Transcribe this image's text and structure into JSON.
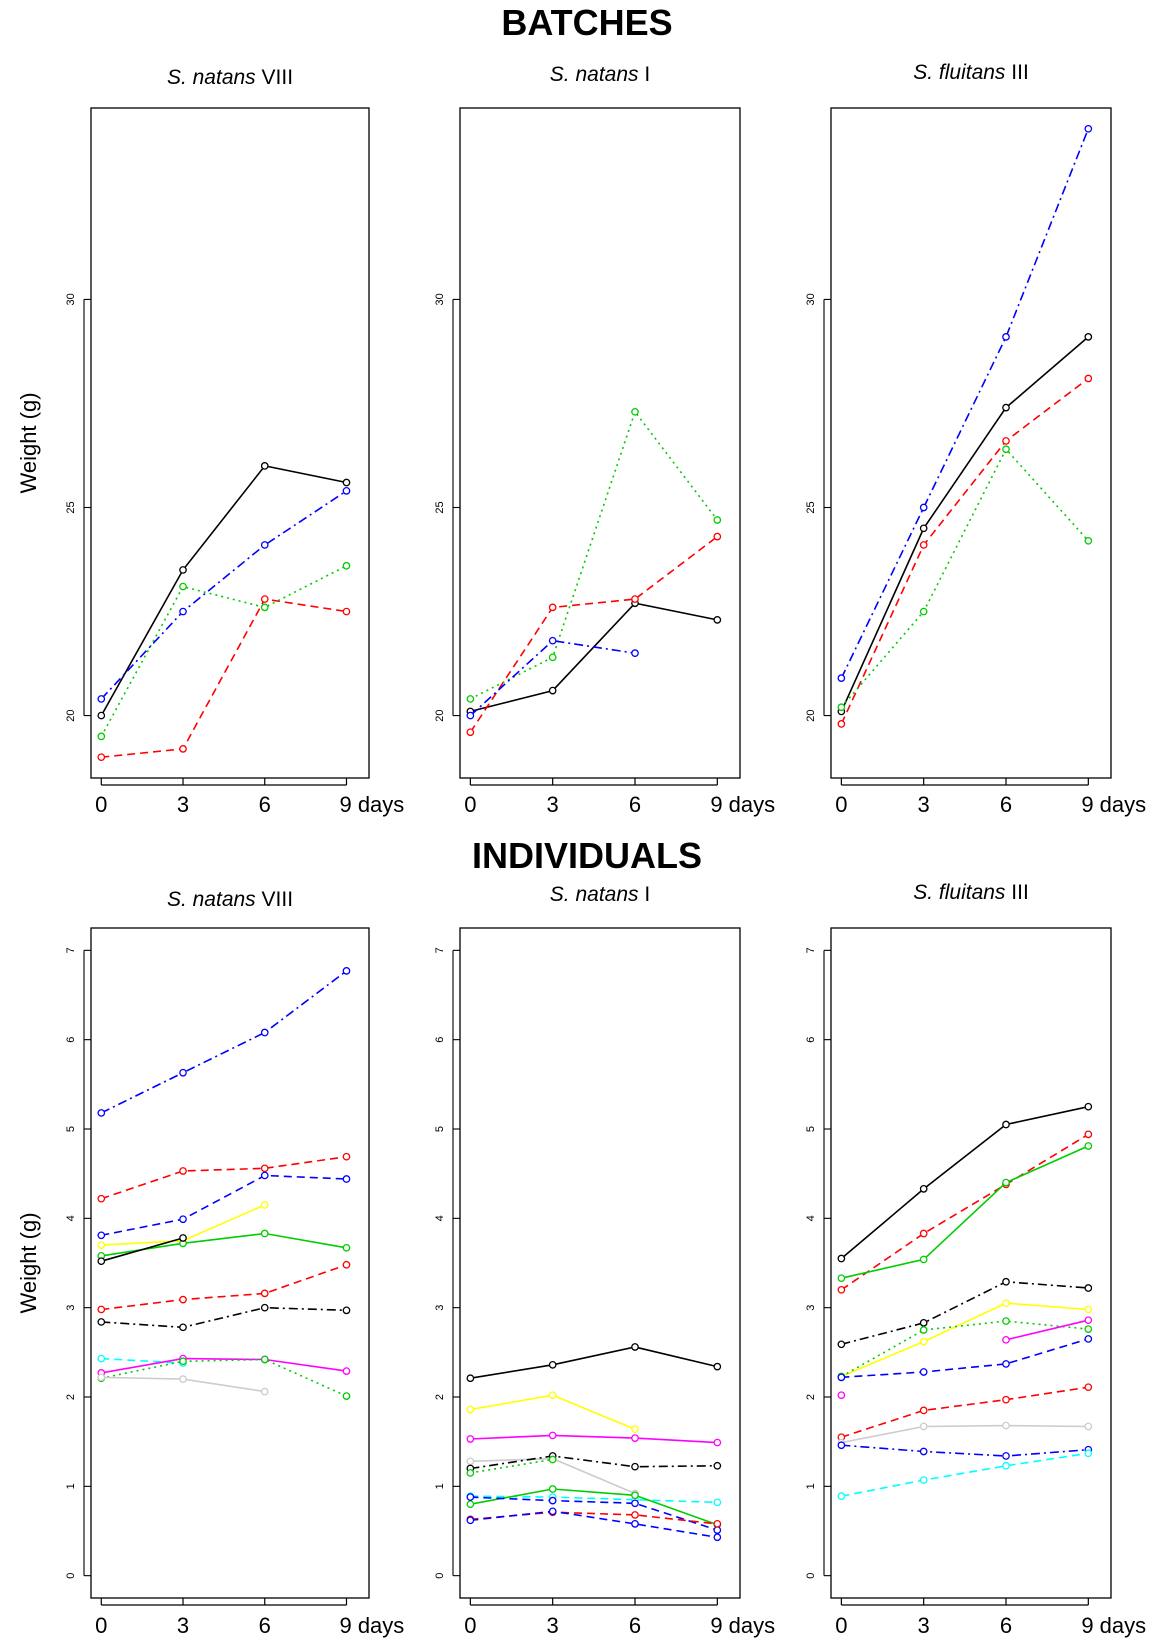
{
  "sections": [
    {
      "title": "BATCHES"
    },
    {
      "title": "INDIVIDUALS"
    }
  ],
  "chart_data": [
    {
      "type": "line",
      "group": "BATCHES",
      "title_italic": "S. natans",
      "title_suffix": " VIII",
      "ylabel": "Weight (g)",
      "x": [
        0,
        3,
        6,
        9
      ],
      "x_tick_labels": [
        "0",
        "3",
        "6",
        "9 days"
      ],
      "y_ticks": [
        20,
        25,
        30
      ],
      "ylim": [
        18.5,
        34.6
      ],
      "series": [
        {
          "color": "#000000",
          "style": "solid",
          "values": [
            20.0,
            23.5,
            26.0,
            25.6
          ]
        },
        {
          "color": "#ff0000",
          "style": "dashed",
          "values": [
            19.0,
            19.2,
            22.8,
            22.5
          ]
        },
        {
          "color": "#00cc00",
          "style": "dotted",
          "values": [
            19.5,
            23.1,
            22.6,
            23.6
          ]
        },
        {
          "color": "#0000ff",
          "style": "dashdot",
          "values": [
            20.4,
            22.5,
            24.1,
            25.4
          ]
        }
      ]
    },
    {
      "type": "line",
      "group": "BATCHES",
      "title_italic": "S. natans",
      "title_suffix": " I",
      "ylabel": "",
      "x": [
        0,
        3,
        6,
        9
      ],
      "x_tick_labels": [
        "0",
        "3",
        "6",
        "9 days"
      ],
      "y_ticks": [
        20,
        25,
        30
      ],
      "ylim": [
        18.5,
        34.6
      ],
      "series": [
        {
          "color": "#000000",
          "style": "solid",
          "values": [
            20.1,
            20.6,
            22.7,
            22.3
          ]
        },
        {
          "color": "#ff0000",
          "style": "dashed",
          "values": [
            19.6,
            22.6,
            22.8,
            24.3
          ]
        },
        {
          "color": "#00cc00",
          "style": "dotted",
          "values": [
            20.4,
            21.4,
            27.3,
            24.7
          ]
        },
        {
          "color": "#0000ff",
          "style": "dashdot",
          "values": [
            20.0,
            21.8,
            21.5,
            null
          ]
        }
      ]
    },
    {
      "type": "line",
      "group": "BATCHES",
      "title_italic": "S. fluitans",
      "title_suffix": " III",
      "ylabel": "",
      "x": [
        0,
        3,
        6,
        9
      ],
      "x_tick_labels": [
        "0",
        "3",
        "6",
        "9 days"
      ],
      "y_ticks": [
        20,
        25,
        30
      ],
      "ylim": [
        18.5,
        34.6
      ],
      "series": [
        {
          "color": "#000000",
          "style": "solid",
          "values": [
            20.1,
            24.5,
            27.4,
            29.1
          ]
        },
        {
          "color": "#ff0000",
          "style": "dashed",
          "values": [
            19.8,
            24.1,
            26.6,
            28.1
          ]
        },
        {
          "color": "#00cc00",
          "style": "dotted",
          "values": [
            20.2,
            22.5,
            26.4,
            24.2
          ]
        },
        {
          "color": "#0000ff",
          "style": "dashdot",
          "values": [
            20.9,
            25.0,
            29.1,
            34.1
          ]
        }
      ]
    },
    {
      "type": "line",
      "group": "INDIVIDUALS",
      "title_italic": "S. natans",
      "title_suffix": " VIII",
      "ylabel": "Weight (g)",
      "x": [
        0,
        3,
        6,
        9
      ],
      "x_tick_labels": [
        "0",
        "3",
        "6",
        "9 days"
      ],
      "y_ticks": [
        0,
        1,
        2,
        3,
        4,
        5,
        6,
        7
      ],
      "ylim": [
        -0.25,
        7.25
      ],
      "series": [
        {
          "color": "#0000ff",
          "style": "dashdot",
          "values": [
            5.18,
            5.63,
            6.08,
            6.77
          ]
        },
        {
          "color": "#ff0000",
          "style": "dashed",
          "values": [
            4.22,
            4.53,
            4.56,
            4.69
          ]
        },
        {
          "color": "#0000ff",
          "style": "dashed",
          "values": [
            3.81,
            3.99,
            4.48,
            4.44
          ]
        },
        {
          "color": "#ffff00",
          "style": "solid",
          "values": [
            3.7,
            3.75,
            4.15,
            null
          ]
        },
        {
          "color": "#00cc00",
          "style": "solid",
          "values": [
            3.58,
            3.72,
            3.83,
            3.67
          ]
        },
        {
          "color": "#000000",
          "style": "solid",
          "values": [
            3.52,
            3.78,
            null,
            null
          ]
        },
        {
          "color": "#ff0000",
          "style": "dashed",
          "values": [
            2.98,
            3.09,
            3.16,
            3.48
          ]
        },
        {
          "color": "#000000",
          "style": "dashdot",
          "values": [
            2.84,
            2.78,
            3.0,
            2.97
          ]
        },
        {
          "color": "#00ffff",
          "style": "dashed",
          "values": [
            2.43,
            2.38,
            null,
            null
          ]
        },
        {
          "color": "#ff00ff",
          "style": "solid",
          "values": [
            2.27,
            2.43,
            2.42,
            2.29
          ]
        },
        {
          "color": "#00cc00",
          "style": "dotted",
          "values": [
            2.21,
            2.4,
            2.42,
            2.01
          ]
        },
        {
          "color": "#cccccc",
          "style": "solid",
          "values": [
            2.22,
            2.2,
            2.06,
            null
          ]
        }
      ]
    },
    {
      "type": "line",
      "group": "INDIVIDUALS",
      "title_italic": "S. natans",
      "title_suffix": " I",
      "ylabel": "",
      "x": [
        0,
        3,
        6,
        9
      ],
      "x_tick_labels": [
        "0",
        "3",
        "6",
        "9 days"
      ],
      "y_ticks": [
        0,
        1,
        2,
        3,
        4,
        5,
        6,
        7
      ],
      "ylim": [
        -0.25,
        7.25
      ],
      "series": [
        {
          "color": "#000000",
          "style": "solid",
          "values": [
            2.21,
            2.36,
            2.56,
            2.34
          ]
        },
        {
          "color": "#ffff00",
          "style": "solid",
          "values": [
            1.86,
            2.02,
            1.64,
            null
          ]
        },
        {
          "color": "#ff00ff",
          "style": "solid",
          "values": [
            1.53,
            1.57,
            1.54,
            1.49
          ]
        },
        {
          "color": "#cccccc",
          "style": "solid",
          "values": [
            1.28,
            1.31,
            0.92,
            null
          ]
        },
        {
          "color": "#000000",
          "style": "dashdot",
          "values": [
            1.2,
            1.34,
            1.22,
            1.23
          ]
        },
        {
          "color": "#00cc00",
          "style": "dotted",
          "values": [
            1.15,
            1.3,
            null,
            null
          ]
        },
        {
          "color": "#00ffff",
          "style": "dashed",
          "values": [
            0.89,
            0.88,
            0.85,
            0.82
          ]
        },
        {
          "color": "#00cc00",
          "style": "solid",
          "values": [
            0.8,
            0.97,
            0.9,
            0.57
          ]
        },
        {
          "color": "#0000ff",
          "style": "dashed",
          "values": [
            0.88,
            0.84,
            0.81,
            0.51
          ]
        },
        {
          "color": "#ff0000",
          "style": "dashed",
          "values": [
            0.63,
            0.71,
            0.68,
            0.58
          ]
        },
        {
          "color": "#0000ff",
          "style": "dashed",
          "values": [
            0.62,
            0.72,
            0.58,
            0.43
          ]
        }
      ]
    },
    {
      "type": "line",
      "group": "INDIVIDUALS",
      "title_italic": "S. fluitans",
      "title_suffix": " III",
      "ylabel": "",
      "x": [
        0,
        3,
        6,
        9
      ],
      "x_tick_labels": [
        "0",
        "3",
        "6",
        "9 days"
      ],
      "y_ticks": [
        0,
        1,
        2,
        3,
        4,
        5,
        6,
        7
      ],
      "ylim": [
        -0.25,
        7.25
      ],
      "series": [
        {
          "color": "#000000",
          "style": "solid",
          "values": [
            3.55,
            4.33,
            5.05,
            5.25
          ]
        },
        {
          "color": "#ff0000",
          "style": "dashed",
          "values": [
            3.2,
            3.83,
            4.38,
            4.94
          ]
        },
        {
          "color": "#00cc00",
          "style": "solid",
          "values": [
            3.33,
            3.54,
            4.4,
            4.81
          ]
        },
        {
          "color": "#000000",
          "style": "dashdot",
          "values": [
            2.59,
            2.83,
            3.29,
            3.22
          ]
        },
        {
          "color": "#ffff00",
          "style": "solid",
          "values": [
            2.23,
            2.62,
            3.05,
            2.98
          ]
        },
        {
          "color": "#00cc00",
          "style": "dotted",
          "values": [
            2.23,
            2.75,
            2.85,
            2.76
          ]
        },
        {
          "color": "#ff00ff",
          "style": "solid",
          "values": [
            2.02,
            null,
            2.64,
            2.86
          ]
        },
        {
          "color": "#0000ff",
          "style": "dashed",
          "values": [
            2.22,
            2.28,
            2.37,
            2.65
          ]
        },
        {
          "color": "#ff0000",
          "style": "dashed",
          "values": [
            1.55,
            1.85,
            1.97,
            2.11
          ]
        },
        {
          "color": "#cccccc",
          "style": "solid",
          "values": [
            1.49,
            1.67,
            1.68,
            1.67
          ]
        },
        {
          "color": "#0000ff",
          "style": "dashdot",
          "values": [
            1.46,
            1.39,
            1.34,
            1.41
          ]
        },
        {
          "color": "#00ffff",
          "style": "dashed",
          "values": [
            0.89,
            1.07,
            1.23,
            1.37
          ]
        }
      ]
    }
  ]
}
